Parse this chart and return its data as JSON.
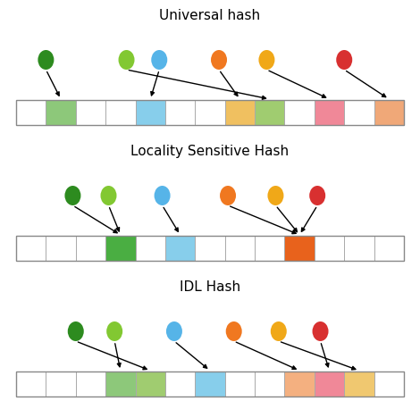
{
  "title_uh": "Universal hash",
  "title_lsh": "Locality Sensitive Hash",
  "title_idl": "IDL Hash",
  "title_fontsize": 11,
  "bg_color": "#ffffff",
  "dot_colors": {
    "dark_green": "#2d8b1f",
    "light_green": "#82c832",
    "blue": "#56b4e8",
    "orange": "#f07820",
    "gold": "#f0a818",
    "red": "#d83030"
  },
  "cell_colors": {
    "green": "#8dc87a",
    "blue": "#87ceeb",
    "yellow": "#f0c060",
    "light_green": "#a0cc70",
    "pink": "#f08898",
    "peach": "#f0a878",
    "dark_green": "#4aae42",
    "dark_orange": "#e8621c",
    "salmon": "#f4a07a",
    "gold_light": "#f0c870",
    "lt_peach": "#f4b080"
  },
  "fig_w": 4.7,
  "fig_h": 4.58,
  "dpi": 100
}
